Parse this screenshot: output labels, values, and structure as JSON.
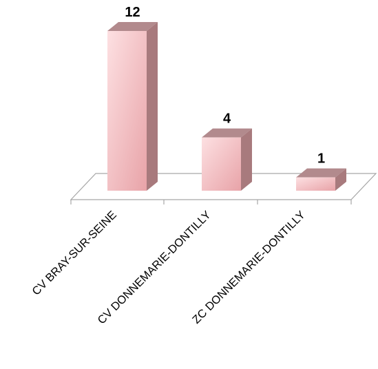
{
  "chart_data": {
    "type": "bar",
    "categories": [
      "CV BRAY-SUR-SEINE",
      "CV DONNEMARIE-DONTILLY",
      "ZC DONNEMARIE-DONTILLY"
    ],
    "values": [
      12,
      4,
      1
    ],
    "title": "",
    "xlabel": "",
    "ylabel": "",
    "ylim": [
      0,
      12
    ],
    "grid": false,
    "legend": "none",
    "style": "3d-column",
    "colors": {
      "bar_front_light": "#fde0e2",
      "bar_front_dark": "#e8a3a8",
      "bar_side": "#a87a7d",
      "bar_top": "#b28a8d",
      "floor_line": "#a6a6a6"
    }
  }
}
